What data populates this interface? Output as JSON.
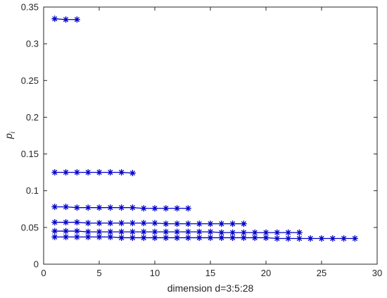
{
  "chart_data": {
    "type": "line",
    "title": "",
    "xlabel": "dimension d=3:5:28",
    "ylabel": "p",
    "ylabel_subscript": "i",
    "xlim": [
      0,
      30
    ],
    "ylim": [
      0,
      0.35
    ],
    "xticks": [
      0,
      5,
      10,
      15,
      20,
      25,
      30
    ],
    "yticks": [
      0,
      0.05,
      0.1,
      0.15,
      0.2,
      0.25,
      0.3,
      0.35
    ],
    "xtick_labels": [
      "0",
      "5",
      "10",
      "15",
      "20",
      "25",
      "30"
    ],
    "ytick_labels": [
      "0",
      "0.05",
      "0.1",
      "0.15",
      "0.2",
      "0.25",
      "0.3",
      "0.35"
    ],
    "grid": false,
    "marker": "asterisk",
    "color": "#0000c8",
    "series": [
      {
        "d": 3,
        "x": [
          1,
          2,
          3
        ],
        "y": [
          0.334,
          0.333,
          0.333
        ]
      },
      {
        "d": 8,
        "x": [
          1,
          2,
          3,
          4,
          5,
          6,
          7,
          8
        ],
        "y": [
          0.125,
          0.125,
          0.125,
          0.125,
          0.125,
          0.125,
          0.125,
          0.124
        ]
      },
      {
        "d": 13,
        "x": [
          1,
          2,
          3,
          4,
          5,
          6,
          7,
          8,
          9,
          10,
          11,
          12,
          13
        ],
        "y": [
          0.078,
          0.078,
          0.077,
          0.077,
          0.077,
          0.077,
          0.077,
          0.077,
          0.076,
          0.076,
          0.076,
          0.076,
          0.076
        ]
      },
      {
        "d": 18,
        "x": [
          1,
          2,
          3,
          4,
          5,
          6,
          7,
          8,
          9,
          10,
          11,
          12,
          13,
          14,
          15,
          16,
          17,
          18
        ],
        "y": [
          0.057,
          0.057,
          0.057,
          0.056,
          0.056,
          0.056,
          0.056,
          0.056,
          0.056,
          0.056,
          0.055,
          0.055,
          0.055,
          0.055,
          0.055,
          0.055,
          0.055,
          0.055
        ]
      },
      {
        "d": 23,
        "x": [
          1,
          2,
          3,
          4,
          5,
          6,
          7,
          8,
          9,
          10,
          11,
          12,
          13,
          14,
          15,
          16,
          17,
          18,
          19,
          20,
          21,
          22,
          23
        ],
        "y": [
          0.045,
          0.045,
          0.045,
          0.044,
          0.044,
          0.044,
          0.044,
          0.044,
          0.044,
          0.044,
          0.044,
          0.044,
          0.044,
          0.044,
          0.044,
          0.043,
          0.043,
          0.043,
          0.043,
          0.043,
          0.043,
          0.043,
          0.043
        ]
      },
      {
        "d": 28,
        "x": [
          1,
          2,
          3,
          4,
          5,
          6,
          7,
          8,
          9,
          10,
          11,
          12,
          13,
          14,
          15,
          16,
          17,
          18,
          19,
          20,
          21,
          22,
          23,
          24,
          25,
          26,
          27,
          28
        ],
        "y": [
          0.037,
          0.037,
          0.037,
          0.037,
          0.037,
          0.037,
          0.036,
          0.036,
          0.036,
          0.036,
          0.036,
          0.036,
          0.036,
          0.036,
          0.036,
          0.036,
          0.036,
          0.036,
          0.036,
          0.036,
          0.035,
          0.035,
          0.035,
          0.035,
          0.035,
          0.035,
          0.035,
          0.035
        ]
      }
    ]
  }
}
